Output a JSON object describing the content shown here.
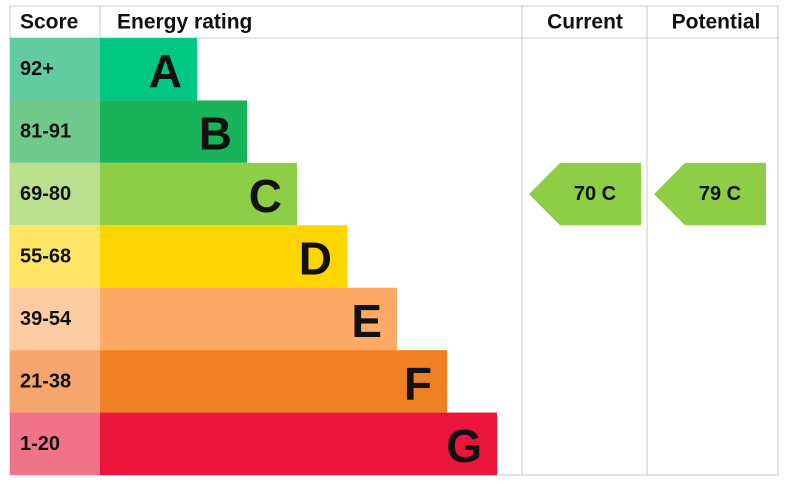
{
  "header": {
    "score": "Score",
    "rating": "Energy rating",
    "current": "Current",
    "potential": "Potential"
  },
  "bands": [
    {
      "score": "92+",
      "letter": "A",
      "color": "#00c781",
      "score_color": "#63cba1"
    },
    {
      "score": "81-91",
      "letter": "B",
      "color": "#19b459",
      "score_color": "#70c98d"
    },
    {
      "score": "69-80",
      "letter": "C",
      "color": "#8dce46",
      "score_color": "#badf8e"
    },
    {
      "score": "55-68",
      "letter": "D",
      "color": "#ffd500",
      "score_color": "#ffe566"
    },
    {
      "score": "39-54",
      "letter": "E",
      "color": "#fcaa65",
      "score_color": "#fdcca2"
    },
    {
      "score": "21-38",
      "letter": "F",
      "color": "#ef8023",
      "score_color": "#f4a66e"
    },
    {
      "score": "1-20",
      "letter": "G",
      "color": "#e9153b",
      "score_color": "#f17389"
    }
  ],
  "current": {
    "label": "70 C",
    "color": "#8dce46"
  },
  "potential": {
    "label": "79 C",
    "color": "#8dce46"
  }
}
